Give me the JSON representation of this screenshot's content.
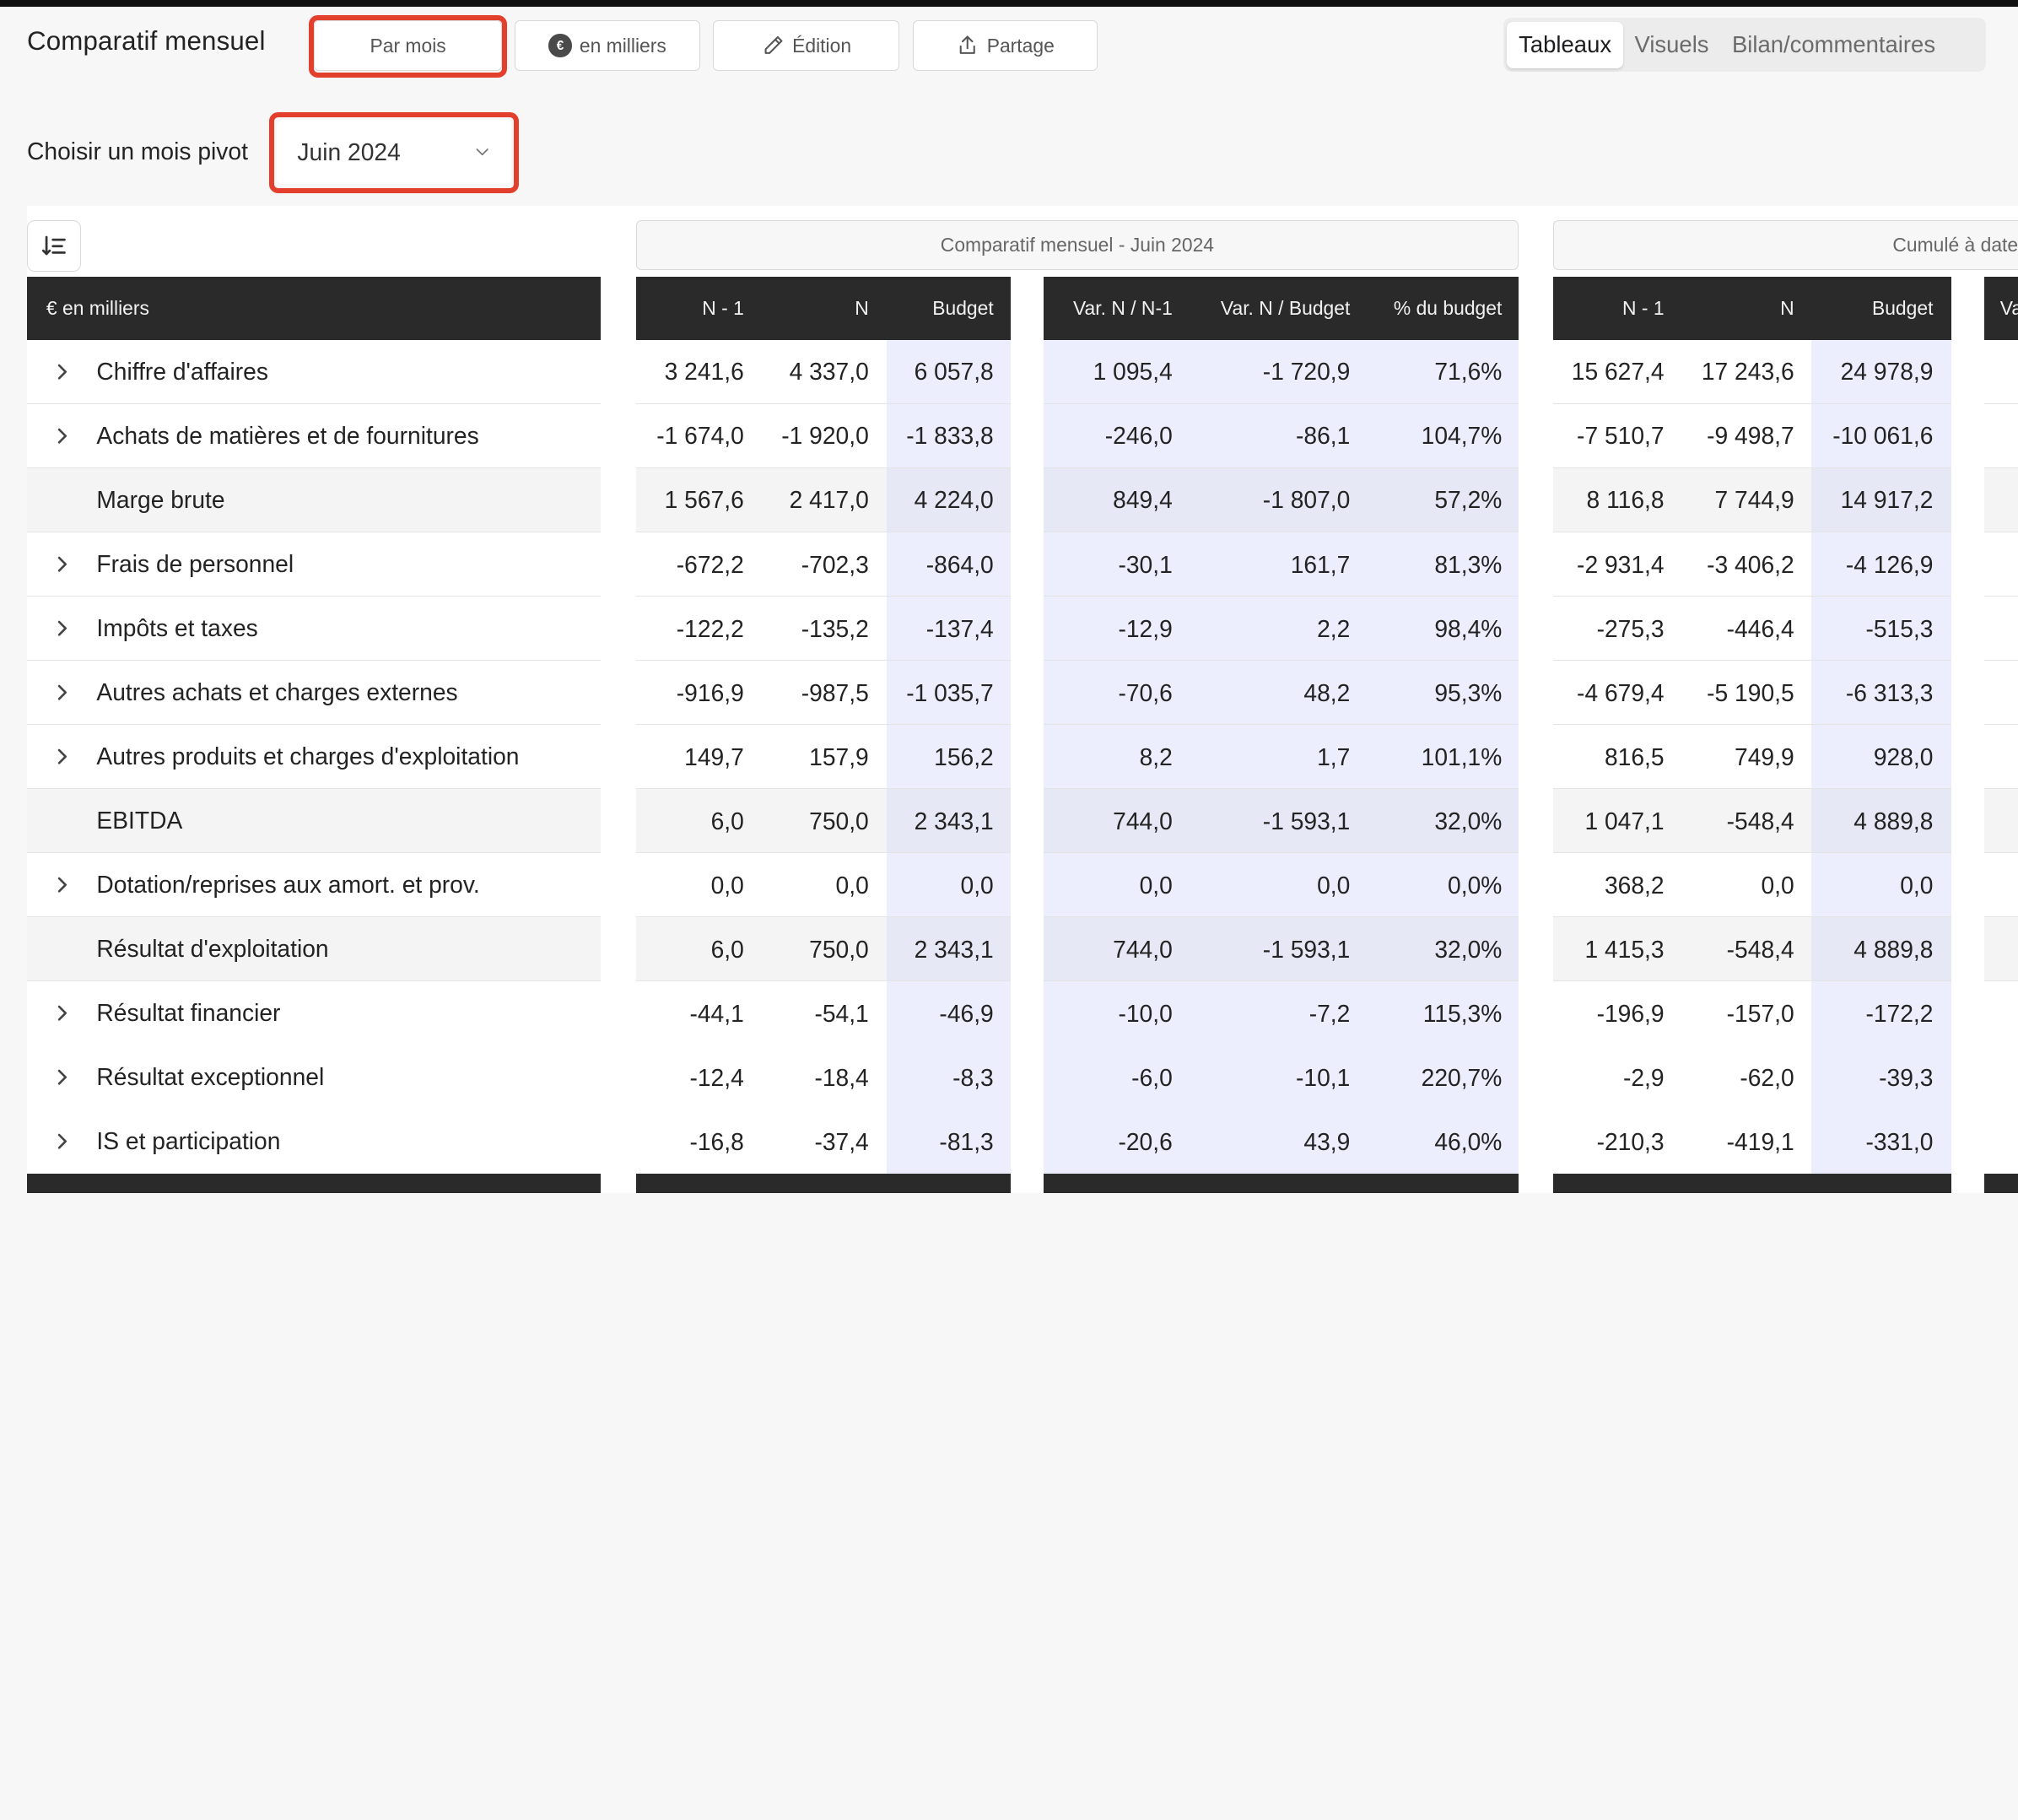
{
  "app": {
    "title": "Comparatif mensuel"
  },
  "toolbar": {
    "period_label": "Par mois",
    "unit_label": "en milliers",
    "edit_label": "Édition",
    "share_label": "Partage"
  },
  "view_tabs": [
    {
      "label": "Tableaux",
      "active": true
    },
    {
      "label": "Visuels",
      "active": false
    },
    {
      "label": "Bilan/commentaires",
      "active": false
    }
  ],
  "pivot": {
    "label": "Choisir un mois pivot",
    "value": "Juin 2024"
  },
  "groups": {
    "monthly": "Comparatif mensuel - Juin 2024",
    "cumulative": "Cumulé à date"
  },
  "table": {
    "label_header": "€ en milliers",
    "columns": {
      "n1": "N - 1",
      "n": "N",
      "budget": "Budget",
      "var_n_n1": "Var. N / N-1",
      "var_n_budget": "Var. N / Budget",
      "pct_budget": "% du budget",
      "cum_n1": "N - 1",
      "cum_n": "N",
      "cum_budget": "Budget",
      "cum_var": "Va"
    },
    "rows": [
      {
        "label": "Chiffre d'affaires",
        "expandable": true,
        "values": [
          "3 241,6",
          "4 337,0",
          "6 057,8",
          "1 095,4",
          "-1 720,9",
          "71,6%",
          "15 627,4",
          "17 243,6",
          "24 978,9"
        ]
      },
      {
        "label": "Achats de matières et de fournitures",
        "expandable": true,
        "values": [
          "-1 674,0",
          "-1 920,0",
          "-1 833,8",
          "-246,0",
          "-86,1",
          "104,7%",
          "-7 510,7",
          "-9 498,7",
          "-10 061,6"
        ]
      },
      {
        "label": "Marge brute",
        "expandable": false,
        "values": [
          "1 567,6",
          "2 417,0",
          "4 224,0",
          "849,4",
          "-1 807,0",
          "57,2%",
          "8 116,8",
          "7 744,9",
          "14 917,2"
        ]
      },
      {
        "label": "Frais de personnel",
        "expandable": true,
        "values": [
          "-672,2",
          "-702,3",
          "-864,0",
          "-30,1",
          "161,7",
          "81,3%",
          "-2 931,4",
          "-3 406,2",
          "-4 126,9"
        ]
      },
      {
        "label": "Impôts et taxes",
        "expandable": true,
        "values": [
          "-122,2",
          "-135,2",
          "-137,4",
          "-12,9",
          "2,2",
          "98,4%",
          "-275,3",
          "-446,4",
          "-515,3"
        ]
      },
      {
        "label": "Autres achats et charges externes",
        "expandable": true,
        "values": [
          "-916,9",
          "-987,5",
          "-1 035,7",
          "-70,6",
          "48,2",
          "95,3%",
          "-4 679,4",
          "-5 190,5",
          "-6 313,3"
        ]
      },
      {
        "label": "Autres produits et charges d'exploitation",
        "expandable": true,
        "values": [
          "149,7",
          "157,9",
          "156,2",
          "8,2",
          "1,7",
          "101,1%",
          "816,5",
          "749,9",
          "928,0"
        ]
      },
      {
        "label": "EBITDA",
        "expandable": false,
        "values": [
          "6,0",
          "750,0",
          "2 343,1",
          "744,0",
          "-1 593,1",
          "32,0%",
          "1 047,1",
          "-548,4",
          "4 889,8"
        ]
      },
      {
        "label": "Dotation/reprises aux amort. et prov.",
        "expandable": true,
        "values": [
          "0,0",
          "0,0",
          "0,0",
          "0,0",
          "0,0",
          "0,0%",
          "368,2",
          "0,0",
          "0,0"
        ]
      },
      {
        "label": "Résultat d'exploitation",
        "expandable": false,
        "values": [
          "6,0",
          "750,0",
          "2 343,1",
          "744,0",
          "-1 593,1",
          "32,0%",
          "1 415,3",
          "-548,4",
          "4 889,8"
        ]
      },
      {
        "label": "Résultat financier",
        "expandable": true,
        "values": [
          "-44,1",
          "-54,1",
          "-46,9",
          "-10,0",
          "-7,2",
          "115,3%",
          "-196,9",
          "-157,0",
          "-172,2"
        ]
      },
      {
        "label": "Résultat exceptionnel",
        "expandable": true,
        "values": [
          "-12,4",
          "-18,4",
          "-8,3",
          "-6,0",
          "-10,1",
          "220,7%",
          "-2,9",
          "-62,0",
          "-39,3"
        ]
      },
      {
        "label": "IS et participation",
        "expandable": true,
        "values": [
          "-16,8",
          "-37,4",
          "-81,3",
          "-20,6",
          "43,9",
          "46,0%",
          "-210,3",
          "-419,1",
          "-331,0"
        ]
      }
    ]
  },
  "colors": {
    "highlight": "#e2402c",
    "header_bg": "#2a2a2a",
    "budget_tint": "#eceefd",
    "subtotal_bg": "#f4f4f4"
  }
}
